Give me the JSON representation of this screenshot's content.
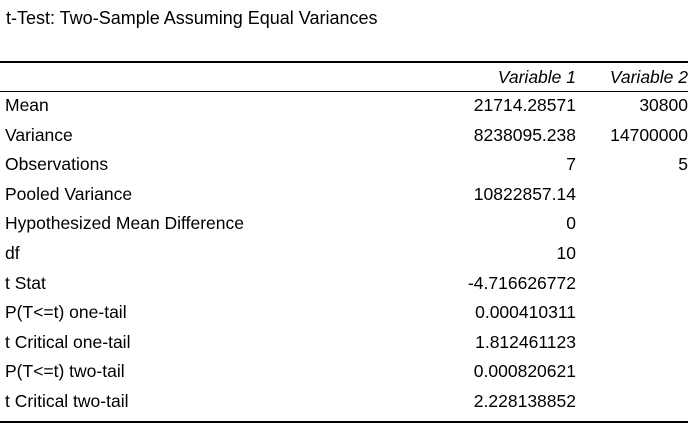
{
  "title": "t-Test: Two-Sample Assuming Equal Variances",
  "header": {
    "label": "",
    "variable1": "Variable 1",
    "variable2": "Variable 2"
  },
  "rows": [
    {
      "label": "Mean",
      "v1": "21714.28571",
      "v2": "30800"
    },
    {
      "label": "Variance",
      "v1": "8238095.238",
      "v2": "14700000"
    },
    {
      "label": "Observations",
      "v1": "7",
      "v2": "5"
    },
    {
      "label": "Pooled Variance",
      "v1": "10822857.14",
      "v2": ""
    },
    {
      "label": "Hypothesized Mean Difference",
      "v1": "0",
      "v2": ""
    },
    {
      "label": "df",
      "v1": "10",
      "v2": ""
    },
    {
      "label": "t Stat",
      "v1": "-4.716626772",
      "v2": ""
    },
    {
      "label": "P(T<=t) one-tail",
      "v1": "0.000410311",
      "v2": ""
    },
    {
      "label": "t Critical one-tail",
      "v1": "1.812461123",
      "v2": ""
    },
    {
      "label": "P(T<=t) two-tail",
      "v1": "0.000820621",
      "v2": ""
    },
    {
      "label": "t Critical two-tail",
      "v1": "2.228138852",
      "v2": ""
    }
  ]
}
